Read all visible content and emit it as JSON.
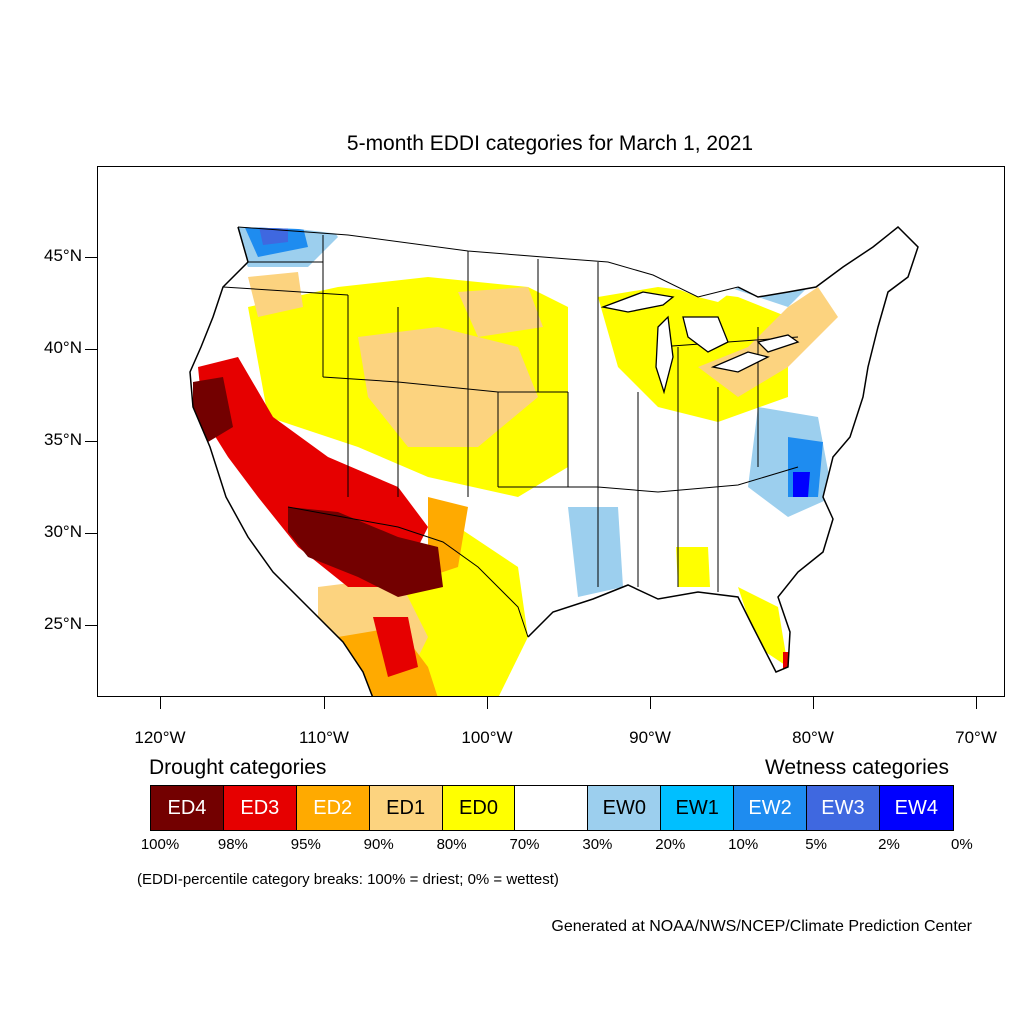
{
  "title": "5-month EDDI categories for March 1, 2021",
  "axes": {
    "lat_labels": [
      "45°N",
      "40°N",
      "35°N",
      "30°N",
      "25°N"
    ],
    "lon_labels": [
      "120°W",
      "110°W",
      "100°W",
      "90°W",
      "80°W",
      "70°W"
    ]
  },
  "legend": {
    "drought_heading": "Drought categories",
    "wetness_heading": "Wetness categories",
    "categories": [
      {
        "label": "ED4",
        "color": "#730000",
        "text_color": "#ffffff"
      },
      {
        "label": "ED3",
        "color": "#e60000",
        "text_color": "#ffffff"
      },
      {
        "label": "ED2",
        "color": "#ffaa00",
        "text_color": "#ffffff"
      },
      {
        "label": "ED1",
        "color": "#fcd37f",
        "text_color": "#000000"
      },
      {
        "label": "ED0",
        "color": "#ffff00",
        "text_color": "#000000"
      },
      {
        "label": "",
        "color": "#ffffff",
        "text_color": "#000000"
      },
      {
        "label": "EW0",
        "color": "#9ccfee",
        "text_color": "#000000"
      },
      {
        "label": "EW1",
        "color": "#00bfff",
        "text_color": "#000000"
      },
      {
        "label": "EW2",
        "color": "#1e8cf0",
        "text_color": "#ffffff"
      },
      {
        "label": "EW3",
        "color": "#3f68e0",
        "text_color": "#ffffff"
      },
      {
        "label": "EW4",
        "color": "#0000ff",
        "text_color": "#ffffff"
      }
    ],
    "percent_breaks": [
      "100%",
      "98%",
      "95%",
      "90%",
      "80%",
      "70%",
      "30%",
      "20%",
      "10%",
      "5%",
      "2%",
      "0%"
    ]
  },
  "note": "(EDDI-percentile category breaks: 100% = driest; 0% = wettest)",
  "credit": "Generated at NOAA/NWS/NCEP/Climate Prediction Center"
}
